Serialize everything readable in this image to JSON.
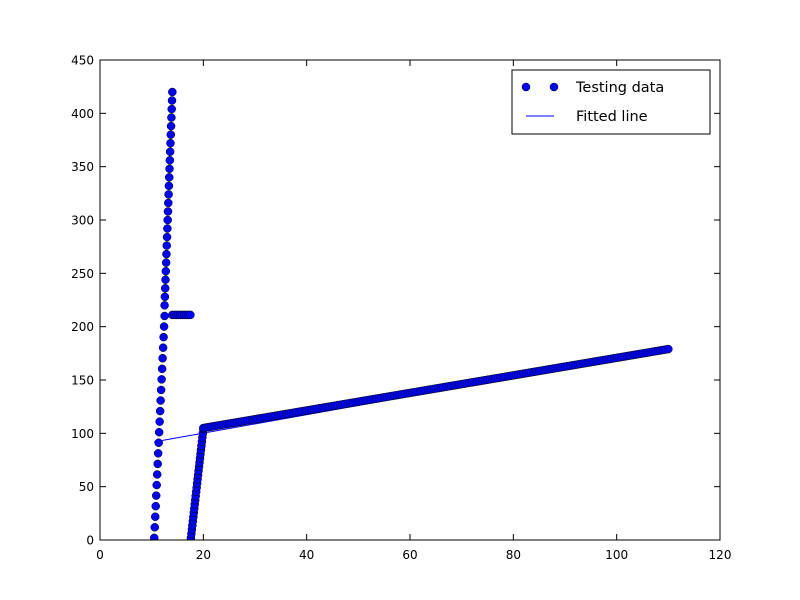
{
  "chart_data": {
    "type": "scatter",
    "xlim": [
      0,
      120
    ],
    "ylim": [
      0,
      450
    ],
    "xticks": [
      0,
      20,
      40,
      60,
      80,
      100,
      120
    ],
    "yticks": [
      0,
      50,
      100,
      150,
      200,
      250,
      300,
      350,
      400,
      450
    ],
    "grid": false,
    "legend_position": "top-right",
    "series": [
      {
        "name": "Testing data",
        "kind": "markers",
        "color": "#0000ff",
        "segments": [
          {
            "x_start": 10.5,
            "y_start": 2,
            "x_end": 12.5,
            "y_end": 210,
            "step": 10
          },
          {
            "x_start": 12.5,
            "y_start": 220,
            "x_end": 14.0,
            "y_end": 420,
            "step": 8
          },
          {
            "x_start": 14.0,
            "y_start": 211,
            "x_end": 17.5,
            "y_end": 211,
            "step": 0.4
          },
          {
            "x_start": 17.6,
            "y_start": 2,
            "x_end": 20.0,
            "y_end": 104,
            "step": 4
          },
          {
            "x_start": 20.0,
            "y_start": 105,
            "x_end": 110.0,
            "y_end": 179,
            "step": 0.5
          }
        ]
      },
      {
        "name": "Fitted line",
        "kind": "line",
        "color": "#0000ff",
        "x": [
          10.5,
          110.0
        ],
        "y": [
          92,
          178
        ]
      }
    ]
  }
}
